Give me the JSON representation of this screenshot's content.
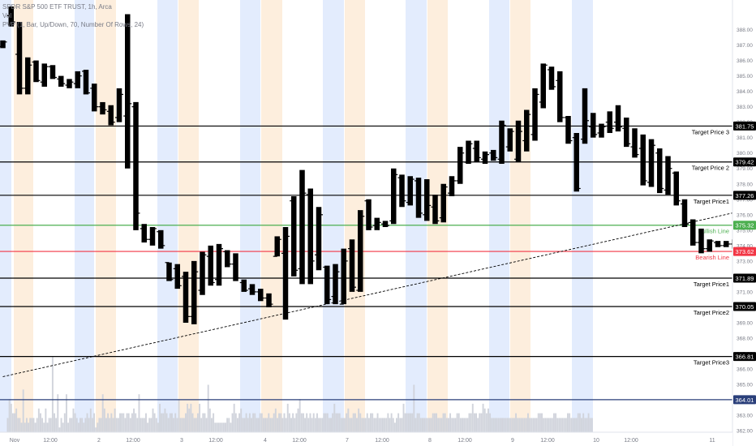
{
  "legend": {
    "title": "SPDR S&P 500 ETF TRUST, 1h, Arca",
    "vol": "Vol",
    "pvp": "PVP (1, Bar, Up/Down, 70, Number Of Rows, 24)"
  },
  "colors": {
    "candle": "#000000",
    "volume": "#d1d4dc",
    "session_blue": "#e3ecfd",
    "session_orange": "#fdeedd",
    "bullish": "#4caf50",
    "bearish": "#f23645",
    "level": "#000000",
    "base_level": "#2a3f7a",
    "trend": "#000000"
  },
  "chart_data": {
    "type": "bar",
    "title": "SPDR S&P 500 ETF TRUST, 1h, Arca",
    "ylim": [
      361.9,
      389.5
    ],
    "y_ticks": [
      "388.00",
      "387.00",
      "386.00",
      "385.00",
      "384.00",
      "383.00",
      "382.00",
      "381.00",
      "380.00",
      "379.00",
      "378.00",
      "377.00",
      "376.00",
      "375.00",
      "374.00",
      "373.00",
      "372.00",
      "371.00",
      "370.00",
      "369.00",
      "368.00",
      "367.00",
      "366.00",
      "365.00",
      "364.00",
      "363.00",
      "362.00"
    ],
    "x_ticks": [
      "Nov",
      "12:00",
      "2",
      "12:00",
      "3",
      "12:00",
      "4",
      "12:00",
      "7",
      "12:00",
      "8",
      "12:00",
      "9",
      "12:00",
      "10",
      "12:00",
      "11"
    ],
    "price_levels": [
      {
        "price": 381.75,
        "label": "Target Price 3",
        "kind": "target"
      },
      {
        "price": 379.42,
        "label": "Target Price 2",
        "kind": "target"
      },
      {
        "price": 377.26,
        "label": "Target Price1",
        "kind": "target"
      },
      {
        "price": 375.32,
        "label": "Bullish Line",
        "kind": "bullish"
      },
      {
        "price": 373.62,
        "label": "Bearish Line",
        "kind": "bearish"
      },
      {
        "price": 371.89,
        "label": "Target Price1",
        "kind": "target"
      },
      {
        "price": 370.05,
        "label": "Target Price2",
        "kind": "target"
      },
      {
        "price": 366.81,
        "label": "Target Price3",
        "kind": "target"
      },
      {
        "price": 364.01,
        "label": "",
        "kind": "base"
      }
    ],
    "trendline": {
      "from": [
        0,
        365.5
      ],
      "to": [
        88.5,
        376.2
      ]
    },
    "candles": [
      {
        "o": 386.9,
        "h": 387.3,
        "l": 386.8,
        "c": 387.2
      },
      {
        "o": 388.9,
        "h": 389.5,
        "l": 388.2,
        "c": 388.5
      },
      {
        "o": 386.4,
        "h": 388.5,
        "l": 383.8,
        "c": 384.2
      },
      {
        "o": 384.2,
        "h": 386.2,
        "l": 383.8,
        "c": 385.7
      },
      {
        "o": 385.9,
        "h": 386.0,
        "l": 384.6,
        "c": 384.7
      },
      {
        "o": 384.6,
        "h": 385.8,
        "l": 384.3,
        "c": 385.6
      },
      {
        "o": 385.6,
        "h": 385.7,
        "l": 384.8,
        "c": 384.9
      },
      {
        "o": 384.8,
        "h": 385.0,
        "l": 384.3,
        "c": 384.5
      },
      {
        "o": 384.4,
        "h": 384.8,
        "l": 384.2,
        "c": 384.6
      },
      {
        "o": 384.5,
        "h": 385.3,
        "l": 384.2,
        "c": 385.0
      },
      {
        "o": 385.3,
        "h": 385.4,
        "l": 383.8,
        "c": 383.9
      },
      {
        "o": 384.2,
        "h": 384.5,
        "l": 382.7,
        "c": 383.0
      },
      {
        "o": 383.0,
        "h": 383.3,
        "l": 382.5,
        "c": 382.8
      },
      {
        "o": 382.7,
        "h": 383.1,
        "l": 381.8,
        "c": 382.0
      },
      {
        "o": 382.3,
        "h": 384.2,
        "l": 382.0,
        "c": 383.8
      },
      {
        "o": 382.4,
        "h": 389.0,
        "l": 379.0,
        "c": 383.2
      },
      {
        "o": 383.0,
        "h": 383.3,
        "l": 375.0,
        "c": 376.1
      },
      {
        "o": 375.1,
        "h": 375.4,
        "l": 374.2,
        "c": 374.4
      },
      {
        "o": 374.4,
        "h": 375.2,
        "l": 374.0,
        "c": 375.1
      },
      {
        "o": 374.9,
        "h": 375.0,
        "l": 373.8,
        "c": 374.0
      },
      {
        "o": 372.9,
        "h": 372.9,
        "l": 371.7,
        "c": 371.8
      },
      {
        "o": 372.5,
        "h": 372.8,
        "l": 371.2,
        "c": 371.4
      },
      {
        "o": 372.0,
        "h": 372.3,
        "l": 369.0,
        "c": 369.4
      },
      {
        "o": 369.4,
        "h": 373.0,
        "l": 368.9,
        "c": 372.3
      },
      {
        "o": 371.1,
        "h": 373.6,
        "l": 370.8,
        "c": 373.4
      },
      {
        "o": 373.3,
        "h": 374.0,
        "l": 371.4,
        "c": 371.6
      },
      {
        "o": 371.8,
        "h": 374.1,
        "l": 371.4,
        "c": 373.8
      },
      {
        "o": 373.6,
        "h": 373.7,
        "l": 372.6,
        "c": 372.8
      },
      {
        "o": 372.8,
        "h": 373.5,
        "l": 371.7,
        "c": 371.9
      },
      {
        "o": 371.6,
        "h": 371.8,
        "l": 371.0,
        "c": 371.1
      },
      {
        "o": 371.2,
        "h": 371.5,
        "l": 370.8,
        "c": 371.0
      },
      {
        "o": 371.0,
        "h": 371.2,
        "l": 370.4,
        "c": 370.6
      },
      {
        "o": 370.6,
        "h": 370.9,
        "l": 370.0,
        "c": 370.2
      },
      {
        "o": 373.3,
        "h": 374.6,
        "l": 373.3,
        "c": 374.4
      },
      {
        "o": 373.5,
        "h": 375.2,
        "l": 369.2,
        "c": 374.6
      },
      {
        "o": 376.9,
        "h": 377.2,
        "l": 372.0,
        "c": 372.4
      },
      {
        "o": 372.5,
        "h": 378.9,
        "l": 371.5,
        "c": 377.4
      },
      {
        "o": 377.3,
        "h": 377.7,
        "l": 371.5,
        "c": 373.0
      },
      {
        "o": 373.4,
        "h": 376.5,
        "l": 372.4,
        "c": 376.0
      },
      {
        "o": 372.6,
        "h": 372.7,
        "l": 370.2,
        "c": 370.5
      },
      {
        "o": 370.7,
        "h": 372.8,
        "l": 370.2,
        "c": 372.3
      },
      {
        "o": 370.2,
        "h": 373.8,
        "l": 370.2,
        "c": 373.0
      },
      {
        "o": 373.8,
        "h": 374.4,
        "l": 371.0,
        "c": 371.3
      },
      {
        "o": 371.1,
        "h": 376.3,
        "l": 371.0,
        "c": 375.9
      },
      {
        "o": 376.9,
        "h": 377.0,
        "l": 375.0,
        "c": 375.2
      },
      {
        "o": 375.3,
        "h": 375.8,
        "l": 375.0,
        "c": 375.5
      },
      {
        "o": 375.4,
        "h": 375.6,
        "l": 375.2,
        "c": 375.3
      },
      {
        "o": 375.6,
        "h": 379.0,
        "l": 375.4,
        "c": 378.6
      },
      {
        "o": 378.4,
        "h": 378.6,
        "l": 376.5,
        "c": 376.9
      },
      {
        "o": 376.8,
        "h": 378.5,
        "l": 376.6,
        "c": 378.3
      },
      {
        "o": 378.2,
        "h": 378.4,
        "l": 375.8,
        "c": 376.1
      },
      {
        "o": 376.0,
        "h": 378.3,
        "l": 375.6,
        "c": 376.6
      },
      {
        "o": 376.5,
        "h": 377.3,
        "l": 375.4,
        "c": 375.6
      },
      {
        "o": 375.8,
        "h": 378.0,
        "l": 375.5,
        "c": 377.8
      },
      {
        "o": 377.4,
        "h": 378.5,
        "l": 377.2,
        "c": 378.2
      },
      {
        "o": 378.2,
        "h": 380.4,
        "l": 378.0,
        "c": 380.0
      },
      {
        "o": 379.4,
        "h": 380.8,
        "l": 379.3,
        "c": 380.6
      },
      {
        "o": 380.3,
        "h": 380.8,
        "l": 379.4,
        "c": 379.7
      },
      {
        "o": 379.6,
        "h": 380.1,
        "l": 379.3,
        "c": 379.9
      },
      {
        "o": 380.0,
        "h": 380.2,
        "l": 379.5,
        "c": 379.7
      },
      {
        "o": 379.6,
        "h": 382.1,
        "l": 379.3,
        "c": 381.8
      },
      {
        "o": 380.4,
        "h": 381.6,
        "l": 380.1,
        "c": 381.4
      },
      {
        "o": 379.6,
        "h": 382.1,
        "l": 379.4,
        "c": 381.4
      },
      {
        "o": 380.8,
        "h": 382.8,
        "l": 380.1,
        "c": 382.5
      },
      {
        "o": 381.2,
        "h": 384.2,
        "l": 380.8,
        "c": 383.8
      },
      {
        "o": 383.3,
        "h": 385.8,
        "l": 382.9,
        "c": 385.7
      },
      {
        "o": 385.4,
        "h": 385.6,
        "l": 384.1,
        "c": 384.3
      },
      {
        "o": 384.7,
        "h": 385.3,
        "l": 382.0,
        "c": 382.3
      },
      {
        "o": 382.3,
        "h": 382.4,
        "l": 380.6,
        "c": 380.8
      },
      {
        "o": 381.0,
        "h": 381.3,
        "l": 377.5,
        "c": 377.7
      },
      {
        "o": 380.9,
        "h": 384.2,
        "l": 380.6,
        "c": 382.1
      },
      {
        "o": 381.7,
        "h": 382.6,
        "l": 381.0,
        "c": 381.2
      },
      {
        "o": 381.3,
        "h": 381.9,
        "l": 381.0,
        "c": 381.7
      },
      {
        "o": 382.0,
        "h": 382.7,
        "l": 381.3,
        "c": 381.6
      },
      {
        "o": 382.0,
        "h": 383.1,
        "l": 381.4,
        "c": 381.7
      },
      {
        "o": 381.6,
        "h": 382.3,
        "l": 380.4,
        "c": 380.6
      },
      {
        "o": 380.4,
        "h": 381.6,
        "l": 379.7,
        "c": 379.9
      },
      {
        "o": 380.3,
        "h": 381.2,
        "l": 377.9,
        "c": 378.2
      },
      {
        "o": 378.1,
        "h": 380.9,
        "l": 377.8,
        "c": 380.5
      },
      {
        "o": 380.0,
        "h": 380.3,
        "l": 377.4,
        "c": 377.7
      },
      {
        "o": 377.6,
        "h": 379.8,
        "l": 377.3,
        "c": 379.0
      },
      {
        "o": 378.7,
        "h": 378.8,
        "l": 376.6,
        "c": 376.9
      },
      {
        "o": 376.7,
        "h": 377.0,
        "l": 375.2,
        "c": 375.4
      },
      {
        "o": 375.5,
        "h": 375.7,
        "l": 374.0,
        "c": 374.2
      },
      {
        "o": 374.2,
        "h": 375.1,
        "l": 373.5,
        "c": 373.8
      },
      {
        "o": 373.8,
        "h": 374.4,
        "l": 373.6,
        "c": 374.3
      },
      {
        "o": 374.2,
        "h": 374.3,
        "l": 373.9,
        "c": 374.0
      },
      {
        "o": 374.0,
        "h": 374.3,
        "l": 373.9,
        "c": 374.1
      },
      {
        "o": 374.1,
        "h": 374.4,
        "l": 373.8,
        "c": 374.3
      }
    ],
    "volume": [
      0,
      0,
      0,
      0,
      3,
      7,
      6,
      4,
      4,
      5,
      3,
      3,
      2,
      9,
      2,
      3,
      2,
      3,
      3,
      3,
      2,
      3,
      5,
      4,
      3,
      2,
      5,
      2,
      3,
      3,
      16,
      4,
      3,
      8,
      1,
      3,
      2,
      4,
      8,
      2,
      3,
      3,
      5,
      4,
      3,
      2,
      3,
      3,
      2,
      3,
      4,
      3,
      5,
      3,
      4,
      1,
      2,
      3,
      3,
      8,
      5,
      3,
      4,
      3,
      4,
      3,
      5,
      3,
      3,
      4,
      4,
      4,
      3,
      4,
      4,
      3,
      4,
      5,
      4,
      3,
      8,
      3,
      3,
      3,
      4,
      2,
      3,
      3,
      5,
      4,
      3,
      2,
      6,
      4,
      4,
      5,
      4,
      3,
      4,
      4,
      3,
      4,
      3,
      7,
      3,
      3,
      3,
      4,
      6,
      5,
      6,
      4,
      3,
      3,
      4,
      6,
      3,
      4,
      4,
      3,
      10,
      5,
      3,
      4,
      2,
      2,
      2,
      2,
      2,
      2,
      2,
      3,
      3,
      2,
      4,
      6,
      4,
      3,
      4,
      5,
      3,
      3,
      4,
      3,
      4,
      3,
      4,
      4,
      3,
      3,
      4,
      4,
      3,
      3,
      3,
      4,
      3,
      3,
      4,
      5,
      3,
      4,
      4,
      3,
      4,
      3,
      6,
      4,
      3,
      4,
      3,
      4,
      5,
      7,
      4,
      4,
      3,
      4,
      3,
      4,
      3,
      4,
      3,
      4,
      3,
      3,
      3,
      4,
      4,
      4,
      3,
      3,
      4,
      6,
      4,
      4,
      4,
      3,
      3,
      3,
      4,
      5,
      3,
      3,
      4,
      4,
      3,
      5,
      4,
      3,
      3,
      3,
      4,
      3,
      4,
      4,
      3,
      3,
      4,
      3,
      3,
      3,
      3,
      3,
      4,
      3,
      4,
      3,
      2,
      3,
      4,
      3,
      3,
      6,
      4,
      4,
      4,
      4,
      4,
      10,
      3,
      4,
      4,
      3,
      3,
      3,
      3,
      3,
      3,
      3,
      4,
      4,
      4,
      3,
      3,
      3,
      4,
      4,
      3,
      3,
      4,
      3,
      3,
      3,
      4,
      4,
      3,
      3,
      3,
      3,
      3,
      4,
      4,
      6,
      4,
      4,
      3,
      4,
      4,
      6,
      5,
      4,
      5,
      4,
      3,
      3,
      3,
      3,
      3,
      3,
      3,
      3,
      3,
      3,
      3,
      3,
      3,
      3,
      4,
      3,
      3,
      3,
      3,
      3,
      3,
      4,
      3,
      3,
      3,
      3,
      3,
      4,
      4,
      4,
      3,
      3,
      3,
      3,
      3,
      3,
      4,
      4,
      3,
      3,
      3,
      3,
      3,
      3,
      4,
      4,
      3,
      3,
      3,
      3,
      4,
      4,
      3,
      4,
      3,
      3,
      4,
      3,
      3
    ]
  }
}
